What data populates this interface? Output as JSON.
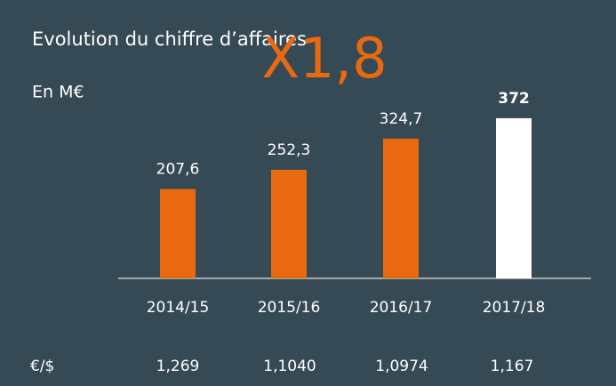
{
  "chart_data": {
    "type": "bar",
    "title": "Evolution  du chiffre d’affaires",
    "subtitle": "En M€",
    "annotation": "X1,8",
    "categories": [
      "2014/15",
      "2015/16",
      "2016/17",
      "2017/18"
    ],
    "values": [
      207.6,
      252.3,
      324.7,
      372
    ],
    "value_labels": [
      "207,6",
      "252,3",
      "324,7",
      "372"
    ],
    "colors": [
      "#e8690f",
      "#e8690f",
      "#e8690f",
      "#ffffff"
    ],
    "ylim": [
      0,
      400
    ],
    "exchange_rate": {
      "label": "€/$",
      "values": [
        "1,269",
        "1,1040",
        "1,0974",
        "1,167"
      ]
    }
  }
}
